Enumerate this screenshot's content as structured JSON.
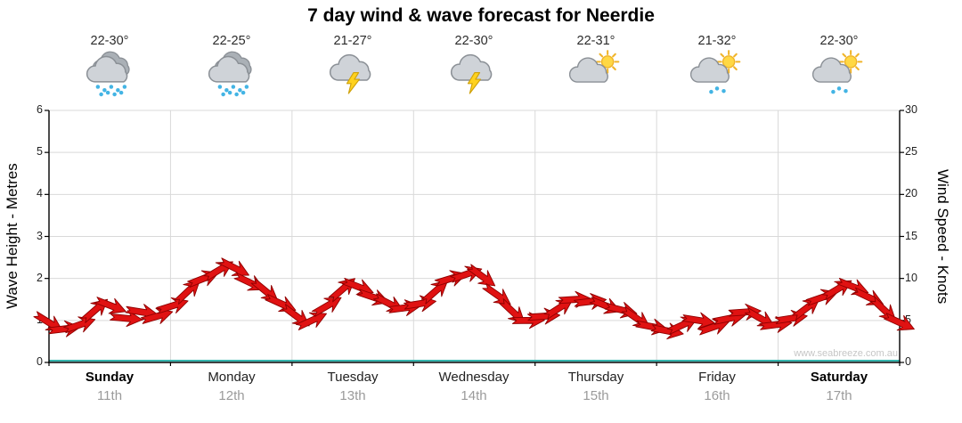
{
  "title": "7 day wind & wave forecast for Neerdie",
  "watermark": "www.seabreeze.com.au",
  "axes": {
    "left_label": "Wave Height - Metres",
    "right_label": "Wind Speed - Knots"
  },
  "days": [
    {
      "name": "Sunday",
      "date": "11th",
      "temp": "22-30°",
      "icon": "rain",
      "bold": true
    },
    {
      "name": "Monday",
      "date": "12th",
      "temp": "22-25°",
      "icon": "rain",
      "bold": false
    },
    {
      "name": "Tuesday",
      "date": "13th",
      "temp": "21-27°",
      "icon": "storm",
      "bold": false
    },
    {
      "name": "Wednesday",
      "date": "14th",
      "temp": "22-30°",
      "icon": "storm",
      "bold": false
    },
    {
      "name": "Thursday",
      "date": "15th",
      "temp": "22-31°",
      "icon": "sun-cloud",
      "bold": false
    },
    {
      "name": "Friday",
      "date": "16th",
      "temp": "21-32°",
      "icon": "sun-cloud-rain",
      "bold": false
    },
    {
      "name": "Saturday",
      "date": "17th",
      "temp": "22-30°",
      "icon": "sun-cloud-rain",
      "bold": true
    }
  ],
  "chart_data": {
    "type": "line",
    "title": "7 day wind & wave forecast for Neerdie",
    "categories": [
      "Sunday 11th",
      "Monday 12th",
      "Tuesday 13th",
      "Wednesday 14th",
      "Thursday 15th",
      "Friday 16th",
      "Saturday 17th"
    ],
    "points_per_day": 8,
    "series": [
      {
        "name": "Wave height with wind direction arrows",
        "unit": "m",
        "color": "#e01212",
        "edge_color": "#8f0000",
        "marker": "wind-arrow",
        "values": [
          0.95,
          0.8,
          0.9,
          1.25,
          1.35,
          1.05,
          1.2,
          1.1,
          1.35,
          1.7,
          2.0,
          2.2,
          2.25,
          1.9,
          1.7,
          1.4,
          1.1,
          1.0,
          1.35,
          1.75,
          1.8,
          1.55,
          1.4,
          1.3,
          1.4,
          1.7,
          2.0,
          2.1,
          2.05,
          1.6,
          1.2,
          1.0,
          1.1,
          1.3,
          1.5,
          1.45,
          1.35,
          1.25,
          1.05,
          0.85,
          0.75,
          0.9,
          1.0,
          0.85,
          1.05,
          1.2,
          1.05,
          0.9,
          1.05,
          1.3,
          1.55,
          1.75,
          1.8,
          1.55,
          1.25,
          0.95
        ]
      }
    ],
    "ylabel_left": "Wave Height - Metres",
    "ylabel_right": "Wind Speed - Knots",
    "ylim_left": [
      0,
      6
    ],
    "ylim_right": [
      0,
      30
    ],
    "yticks_left": [
      0,
      1,
      2,
      3,
      4,
      5,
      6
    ],
    "yticks_right": [
      0,
      5,
      10,
      15,
      20,
      25,
      30
    ],
    "grid": true,
    "baseline": {
      "value": 0,
      "color": "#35b5ae"
    }
  }
}
